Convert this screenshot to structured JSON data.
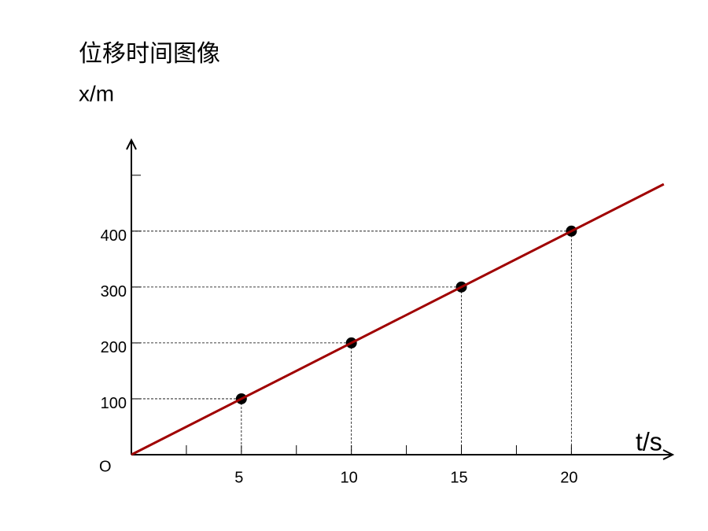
{
  "chart_data": {
    "type": "scatter",
    "title": "位移时间图像",
    "y_label": "x/m",
    "x_label": "t/s",
    "origin_label": "O",
    "x": [
      5,
      10,
      15,
      20
    ],
    "values": [
      100,
      200,
      300,
      400
    ],
    "color": "#000000",
    "fit_line": {
      "x": [
        0,
        24.2
      ],
      "values": [
        0,
        484
      ],
      "color": "#a00000"
    },
    "xlim": [
      0,
      24.6
    ],
    "ylim": [
      0,
      563
    ],
    "xticks": [
      5,
      10,
      15,
      20
    ],
    "yticks": [
      100,
      200,
      300,
      400
    ],
    "xminor": [
      2.5,
      7.5,
      12.5,
      17.5
    ],
    "yminor": [
      500
    ],
    "guides": true
  }
}
